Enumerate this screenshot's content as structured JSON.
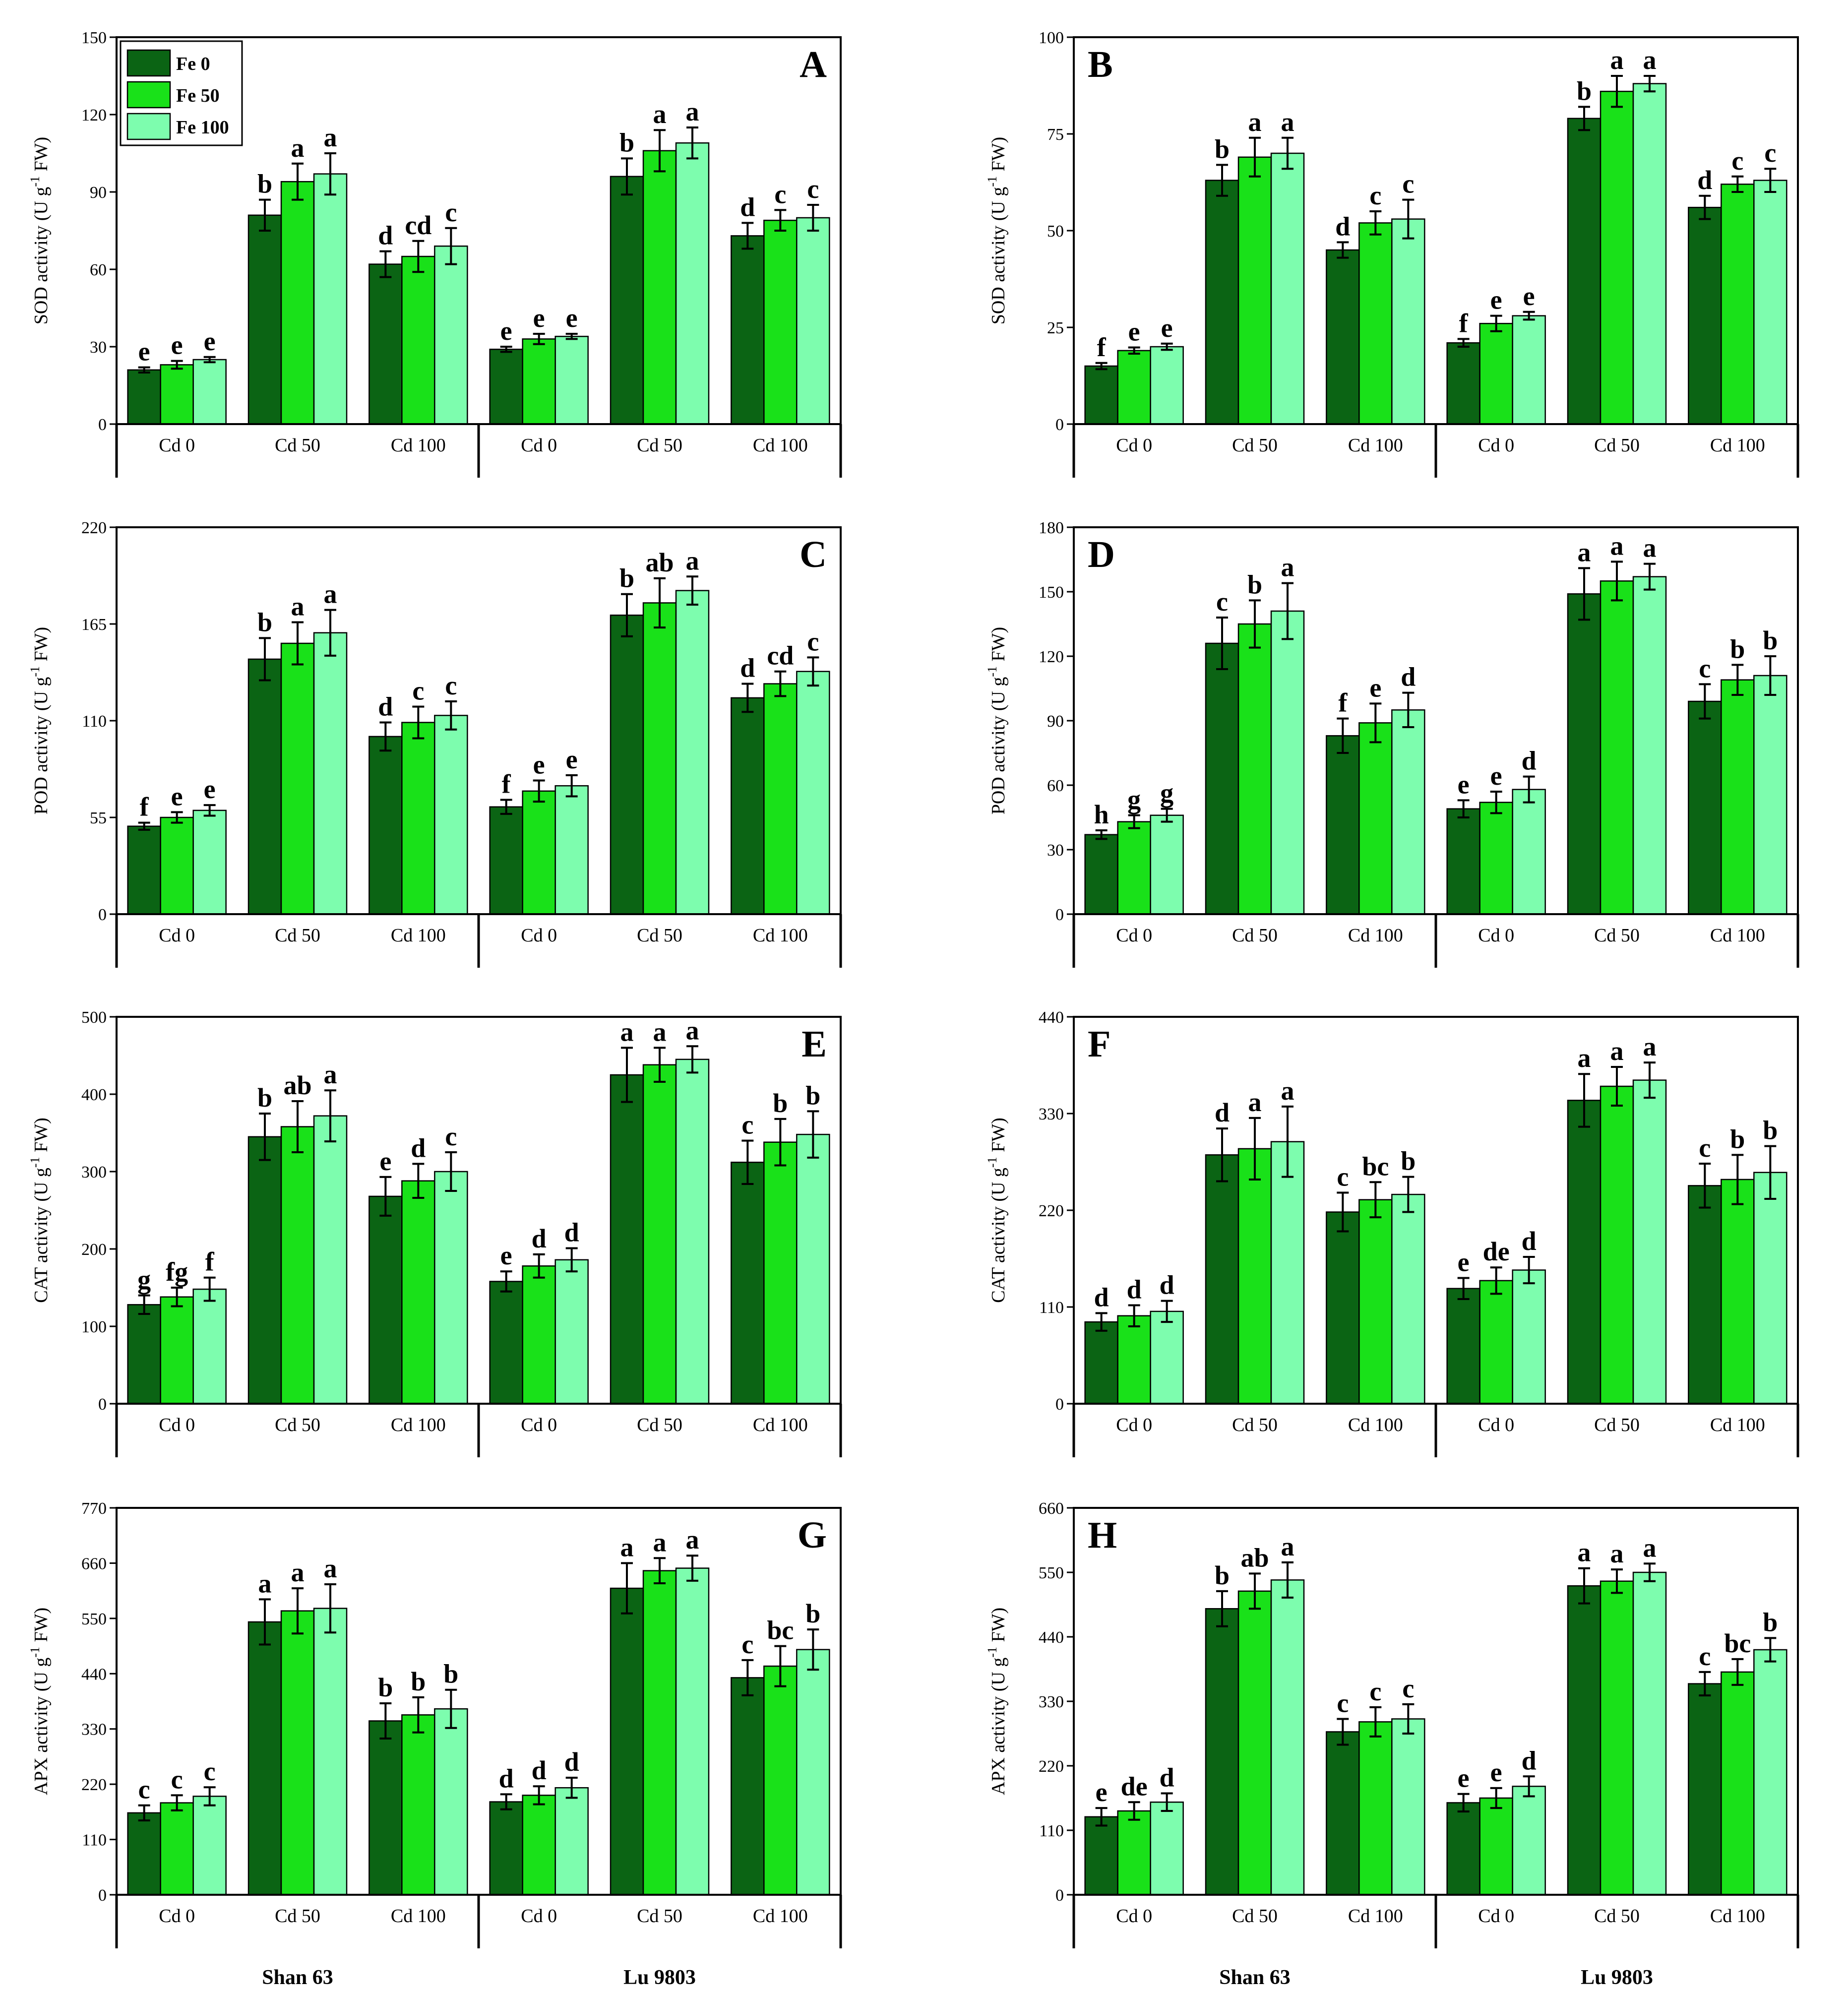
{
  "legend": {
    "entries": [
      "Fe 0",
      "Fe 50",
      "Fe 100"
    ],
    "colors": [
      "#0b6414",
      "#19e119",
      "#7dfdae"
    ]
  },
  "groups": [
    "Cd 0",
    "Cd 50",
    "Cd 100",
    "Cd 0",
    "Cd 50",
    "Cd 100"
  ],
  "cultivars": [
    "Shan 63",
    "Lu 9803"
  ],
  "chart_data": [
    {
      "panel": "A",
      "type": "bar",
      "ylabel": "SOD activity (U g-1 FW)",
      "ylim": [
        0,
        150
      ],
      "yticks": [
        0,
        30,
        60,
        90,
        120,
        150
      ],
      "categories": [
        "Cd 0",
        "Cd 50",
        "Cd 100",
        "Cd 0",
        "Cd 50",
        "Cd 100"
      ],
      "series": [
        {
          "name": "Fe 0",
          "values": [
            21,
            81,
            62,
            29,
            96,
            73
          ],
          "errors": [
            1,
            6,
            5,
            1,
            7,
            5
          ],
          "letters": [
            "e",
            "b",
            "d",
            "e",
            "b",
            "d"
          ]
        },
        {
          "name": "Fe 50",
          "values": [
            23,
            94,
            65,
            33,
            106,
            79
          ],
          "errors": [
            1.5,
            7,
            6,
            2,
            8,
            4
          ],
          "letters": [
            "e",
            "a",
            "cd",
            "e",
            "a",
            "c"
          ]
        },
        {
          "name": "Fe 100",
          "values": [
            25,
            97,
            69,
            34,
            109,
            80
          ],
          "errors": [
            1,
            8,
            7,
            1,
            6,
            5
          ],
          "letters": [
            "e",
            "a",
            "c",
            "e",
            "a",
            "c"
          ]
        }
      ]
    },
    {
      "panel": "B",
      "type": "bar",
      "ylabel": "SOD activity (U g-1 FW)",
      "ylim": [
        0,
        100
      ],
      "yticks": [
        0,
        25,
        50,
        75,
        100
      ],
      "categories": [
        "Cd 0",
        "Cd 50",
        "Cd 100",
        "Cd 0",
        "Cd 50",
        "Cd 100"
      ],
      "series": [
        {
          "name": "Fe 0",
          "values": [
            15,
            63,
            45,
            21,
            79,
            56
          ],
          "errors": [
            0.8,
            4,
            2,
            1,
            3,
            3
          ],
          "letters": [
            "f",
            "b",
            "d",
            "f",
            "b",
            "d"
          ]
        },
        {
          "name": "Fe 50",
          "values": [
            19,
            69,
            52,
            26,
            86,
            62
          ],
          "errors": [
            0.8,
            5,
            3,
            2,
            4,
            2
          ],
          "letters": [
            "e",
            "a",
            "c",
            "e",
            "a",
            "c"
          ]
        },
        {
          "name": "Fe 100",
          "values": [
            20,
            70,
            53,
            28,
            88,
            63
          ],
          "errors": [
            0.8,
            4,
            5,
            1,
            2,
            3
          ],
          "letters": [
            "e",
            "a",
            "c",
            "e",
            "a",
            "c"
          ]
        }
      ]
    },
    {
      "panel": "C",
      "type": "bar",
      "ylabel": "POD activity (U g-1 FW)",
      "ylim": [
        0,
        220
      ],
      "yticks": [
        0,
        55,
        110,
        165,
        220
      ],
      "categories": [
        "Cd 0",
        "Cd 50",
        "Cd 100",
        "Cd 0",
        "Cd 50",
        "Cd 100"
      ],
      "series": [
        {
          "name": "Fe 0",
          "values": [
            50,
            145,
            101,
            61,
            170,
            123
          ],
          "errors": [
            2,
            12,
            8,
            4,
            12,
            8
          ],
          "letters": [
            "f",
            "b",
            "d",
            "f",
            "b",
            "d"
          ]
        },
        {
          "name": "Fe 50",
          "values": [
            55,
            154,
            109,
            70,
            177,
            131
          ],
          "errors": [
            3,
            12,
            9,
            6,
            14,
            7
          ],
          "letters": [
            "e",
            "a",
            "c",
            "e",
            "ab",
            "cd"
          ]
        },
        {
          "name": "Fe 100",
          "values": [
            59,
            160,
            113,
            73,
            184,
            138
          ],
          "errors": [
            3,
            13,
            8,
            6,
            8,
            8
          ],
          "letters": [
            "e",
            "a",
            "c",
            "e",
            "a",
            "c"
          ]
        }
      ]
    },
    {
      "panel": "D",
      "type": "bar",
      "ylabel": "POD activity (U g-1 FW)",
      "ylim": [
        0,
        180
      ],
      "yticks": [
        0,
        30,
        60,
        90,
        120,
        150,
        180
      ],
      "categories": [
        "Cd 0",
        "Cd 50",
        "Cd 100",
        "Cd 0",
        "Cd 50",
        "Cd 100"
      ],
      "series": [
        {
          "name": "Fe 0",
          "values": [
            37,
            126,
            83,
            49,
            149,
            99
          ],
          "errors": [
            2,
            12,
            8,
            4,
            12,
            8
          ],
          "letters": [
            "h",
            "c",
            "f",
            "e",
            "a",
            "c"
          ]
        },
        {
          "name": "Fe 50",
          "values": [
            43,
            135,
            89,
            52,
            155,
            109
          ],
          "errors": [
            3,
            11,
            9,
            5,
            9,
            7
          ],
          "letters": [
            "g",
            "b",
            "e",
            "e",
            "a",
            "b"
          ]
        },
        {
          "name": "Fe 100",
          "values": [
            46,
            141,
            95,
            58,
            157,
            111
          ],
          "errors": [
            3,
            13,
            8,
            6,
            6,
            9
          ],
          "letters": [
            "g",
            "a",
            "d",
            "d",
            "a",
            "b"
          ]
        }
      ]
    },
    {
      "panel": "E",
      "type": "bar",
      "ylabel": "CAT activity (U g-1 FW)",
      "ylim": [
        0,
        500
      ],
      "yticks": [
        0,
        100,
        200,
        300,
        400,
        500
      ],
      "categories": [
        "Cd 0",
        "Cd 50",
        "Cd 100",
        "Cd 0",
        "Cd 50",
        "Cd 100"
      ],
      "series": [
        {
          "name": "Fe 0",
          "values": [
            128,
            345,
            268,
            158,
            425,
            312
          ],
          "errors": [
            12,
            30,
            25,
            13,
            35,
            28
          ],
          "letters": [
            "g",
            "b",
            "e",
            "e",
            "a",
            "c"
          ]
        },
        {
          "name": "Fe 50",
          "values": [
            138,
            358,
            288,
            178,
            438,
            338
          ],
          "errors": [
            12,
            33,
            22,
            15,
            22,
            30
          ],
          "letters": [
            "fg",
            "ab",
            "d",
            "d",
            "a",
            "b"
          ]
        },
        {
          "name": "Fe 100",
          "values": [
            148,
            372,
            300,
            186,
            445,
            348
          ],
          "errors": [
            15,
            33,
            25,
            15,
            17,
            30
          ],
          "letters": [
            "f",
            "a",
            "c",
            "d",
            "a",
            "b"
          ]
        }
      ]
    },
    {
      "panel": "F",
      "type": "bar",
      "ylabel": "CAT activity (U g-1 FW)",
      "ylim": [
        0,
        440
      ],
      "yticks": [
        0,
        110,
        220,
        330,
        440
      ],
      "categories": [
        "Cd 0",
        "Cd 50",
        "Cd 100",
        "Cd 0",
        "Cd 50",
        "Cd 100"
      ],
      "series": [
        {
          "name": "Fe 0",
          "values": [
            93,
            283,
            218,
            131,
            345,
            248
          ],
          "errors": [
            10,
            30,
            22,
            12,
            30,
            25
          ],
          "letters": [
            "d",
            "d",
            "c",
            "e",
            "a",
            "c"
          ]
        },
        {
          "name": "Fe 50",
          "values": [
            100,
            290,
            232,
            140,
            361,
            255
          ],
          "errors": [
            12,
            35,
            20,
            15,
            22,
            28
          ],
          "letters": [
            "d",
            "a",
            "bc",
            "de",
            "a",
            "b"
          ]
        },
        {
          "name": "Fe 100",
          "values": [
            105,
            298,
            238,
            152,
            368,
            263
          ],
          "errors": [
            12,
            40,
            20,
            15,
            20,
            30
          ],
          "letters": [
            "d",
            "a",
            "b",
            "d",
            "a",
            "b"
          ]
        }
      ]
    },
    {
      "panel": "G",
      "type": "bar",
      "ylabel": "APX activity (U g-1 FW)",
      "ylim": [
        0,
        770
      ],
      "yticks": [
        0,
        110,
        220,
        330,
        440,
        550,
        660,
        770
      ],
      "categories": [
        "Cd 0",
        "Cd 50",
        "Cd 100",
        "Cd 0",
        "Cd 50",
        "Cd 100"
      ],
      "series": [
        {
          "name": "Fe 0",
          "values": [
            163,
            543,
            346,
            185,
            610,
            432
          ],
          "errors": [
            15,
            45,
            35,
            15,
            50,
            35
          ],
          "letters": [
            "c",
            "a",
            "b",
            "d",
            "a",
            "c"
          ]
        },
        {
          "name": "Fe 50",
          "values": [
            183,
            565,
            358,
            198,
            645,
            455
          ],
          "errors": [
            15,
            45,
            35,
            18,
            25,
            40
          ],
          "letters": [
            "c",
            "a",
            "b",
            "d",
            "a",
            "bc"
          ]
        },
        {
          "name": "Fe 100",
          "values": [
            196,
            570,
            370,
            213,
            650,
            488
          ],
          "errors": [
            18,
            48,
            38,
            20,
            25,
            40
          ],
          "letters": [
            "c",
            "a",
            "b",
            "d",
            "a",
            "b"
          ]
        }
      ]
    },
    {
      "panel": "H",
      "type": "bar",
      "ylabel": "APX activity (U g-1 FW)",
      "ylim": [
        0,
        660
      ],
      "yticks": [
        0,
        110,
        220,
        330,
        440,
        550,
        660
      ],
      "categories": [
        "Cd 0",
        "Cd 50",
        "Cd 100",
        "Cd 0",
        "Cd 50",
        "Cd 100"
      ],
      "series": [
        {
          "name": "Fe 0",
          "values": [
            133,
            488,
            278,
            157,
            527,
            360
          ],
          "errors": [
            15,
            30,
            22,
            15,
            30,
            20
          ],
          "letters": [
            "e",
            "b",
            "c",
            "e",
            "a",
            "c"
          ]
        },
        {
          "name": "Fe 50",
          "values": [
            143,
            518,
            295,
            165,
            535,
            380
          ],
          "errors": [
            15,
            30,
            25,
            17,
            20,
            22
          ],
          "letters": [
            "de",
            "ab",
            "c",
            "e",
            "a",
            "bc"
          ]
        },
        {
          "name": "Fe 100",
          "values": [
            158,
            537,
            300,
            185,
            550,
            418
          ],
          "errors": [
            15,
            30,
            25,
            17,
            15,
            20
          ],
          "letters": [
            "d",
            "a",
            "c",
            "d",
            "a",
            "b"
          ]
        }
      ]
    }
  ]
}
